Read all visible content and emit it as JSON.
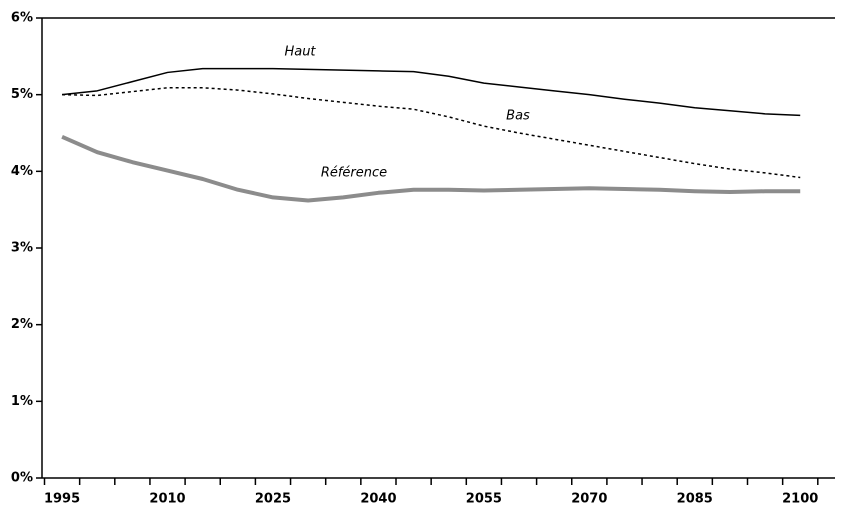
{
  "chart_data": {
    "type": "line",
    "categories": [
      "1995",
      null,
      null,
      "2010",
      null,
      null,
      "2025",
      null,
      null,
      "2040",
      null,
      null,
      "2055",
      null,
      null,
      "2070",
      null,
      null,
      "2085",
      null,
      null,
      "2100"
    ],
    "series": [
      {
        "name": "Haut",
        "color": "#000000",
        "line_style": "solid",
        "line_width": 1.5,
        "values": [
          5.0,
          5.05,
          5.17,
          5.29,
          5.34,
          5.34,
          5.34,
          5.33,
          5.32,
          5.31,
          5.3,
          5.24,
          5.15,
          5.1,
          5.05,
          5.0,
          4.94,
          4.89,
          4.83,
          4.79,
          4.75,
          4.73
        ]
      },
      {
        "name": "Bas",
        "color": "#000000",
        "line_style": "dashed",
        "line_width": 1.5,
        "values": [
          5.0,
          4.99,
          5.04,
          5.09,
          5.09,
          5.06,
          5.01,
          4.95,
          4.9,
          4.85,
          4.81,
          4.71,
          4.59,
          4.5,
          4.42,
          4.34,
          4.26,
          4.18,
          4.1,
          4.03,
          3.98,
          3.92
        ]
      },
      {
        "name": "Référence",
        "color": "#8c8c8c",
        "line_style": "solid",
        "line_width": 4,
        "values": [
          4.45,
          4.25,
          4.12,
          4.01,
          3.9,
          3.76,
          3.66,
          3.62,
          3.66,
          3.72,
          3.76,
          3.76,
          3.75,
          3.76,
          3.77,
          3.78,
          3.77,
          3.76,
          3.74,
          3.73,
          3.74,
          3.74
        ]
      }
    ],
    "ylim": [
      0,
      6
    ],
    "yticks": [
      {
        "value": 0,
        "label": "0%"
      },
      {
        "value": 1,
        "label": "1%"
      },
      {
        "value": 2,
        "label": "2%"
      },
      {
        "value": 3,
        "label": "3%"
      },
      {
        "value": 4,
        "label": "4%"
      },
      {
        "value": 5,
        "label": "5%"
      },
      {
        "value": 6,
        "label": "6%"
      }
    ],
    "grid": false
  }
}
